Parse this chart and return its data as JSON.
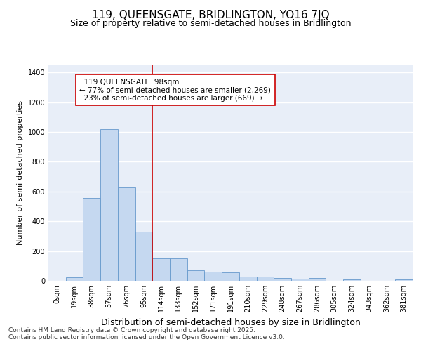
{
  "title": "119, QUEENSGATE, BRIDLINGTON, YO16 7JQ",
  "subtitle": "Size of property relative to semi-detached houses in Bridlington",
  "xlabel": "Distribution of semi-detached houses by size in Bridlington",
  "ylabel": "Number of semi-detached properties",
  "bar_color": "#c5d8f0",
  "bar_edge_color": "#6699cc",
  "background_color": "#e8eef8",
  "grid_color": "#ffffff",
  "annotation_line_color": "#cc0000",
  "annotation_box_color": "#cc0000",
  "categories": [
    "0sqm",
    "19sqm",
    "38sqm",
    "57sqm",
    "76sqm",
    "95sqm",
    "114sqm",
    "133sqm",
    "152sqm",
    "171sqm",
    "191sqm",
    "210sqm",
    "229sqm",
    "248sqm",
    "267sqm",
    "286sqm",
    "305sqm",
    "324sqm",
    "343sqm",
    "362sqm",
    "381sqm"
  ],
  "values": [
    0,
    22,
    555,
    1020,
    625,
    330,
    150,
    150,
    73,
    62,
    55,
    30,
    30,
    20,
    14,
    20,
    0,
    8,
    0,
    0,
    10
  ],
  "property_label": "119 QUEENSGATE: 98sqm",
  "pct_smaller": 77,
  "n_smaller": 2269,
  "pct_larger": 23,
  "n_larger": 669,
  "vline_x": 5.5,
  "ylim": [
    0,
    1450
  ],
  "yticks": [
    0,
    200,
    400,
    600,
    800,
    1000,
    1200,
    1400
  ],
  "footer": "Contains HM Land Registry data © Crown copyright and database right 2025.\nContains public sector information licensed under the Open Government Licence v3.0.",
  "title_fontsize": 11,
  "subtitle_fontsize": 9,
  "tick_fontsize": 7,
  "ylabel_fontsize": 8,
  "xlabel_fontsize": 9,
  "annotation_fontsize": 7.5,
  "footer_fontsize": 6.5
}
